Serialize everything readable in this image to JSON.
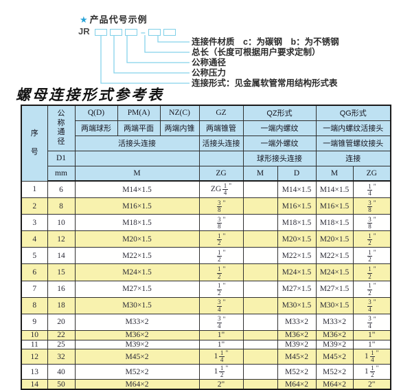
{
  "diagram": {
    "star": "★",
    "heading": "产品代号示例",
    "code_prefix": "JR",
    "dash": "—",
    "labels": [
      "连接件材质　c：为碳钢　b：为不锈钢",
      "总长（长度可根据用户要求定制）",
      "公称通径",
      "公称压力",
      "连接形式：见金属软管常用结构形式表"
    ]
  },
  "table": {
    "title": "螺母连接形式参考表",
    "header": {
      "xuhao": "序号",
      "tongjing": "公称通径",
      "d1": "D1",
      "mm": "mm",
      "col_q": "Q(D)",
      "col_pm": "PM(A)",
      "col_nz": "NZ(C)",
      "col_gz": "GZ",
      "col_qz": "QZ形式",
      "col_qg": "QG形式",
      "q_sub": "两端球形",
      "pm_sub": "两端平面",
      "nz_sub": "两端内锥",
      "gz_sub": "两端锥管",
      "qz_sub1": "一端内螺纹",
      "qg_sub1": "一端内螺纹活接头",
      "left_conn": "活接头连接",
      "gz_conn": "活接头连接",
      "qz_sub2": "一端外螺纹",
      "qg_sub2": "一端锥管螺纹接头",
      "qz_conn": "球形接头连接",
      "qg_conn": "连接",
      "m_left": "M",
      "zg_gz": "ZG",
      "m_qz": "M",
      "d_qz": "D",
      "m_qg": "M",
      "zg_qg": "ZG"
    },
    "rows": [
      {
        "no": "1",
        "dn": "6",
        "m": "M14×1.5",
        "gz": "ZG 1/4\"",
        "qz_m": "",
        "qz_d": "M14×1.5",
        "qg_m": "M14×1.5",
        "qg_zg": "1/4\""
      },
      {
        "no": "2",
        "dn": "8",
        "m": "M16×1.5",
        "gz": "3/8\"",
        "qz_m": "",
        "qz_d": "M16×1.5",
        "qg_m": "M16×1.5",
        "qg_zg": "3/8\""
      },
      {
        "no": "3",
        "dn": "10",
        "m": "M18×1.5",
        "gz": "3/8\"",
        "qz_m": "",
        "qz_d": "M18×1.5",
        "qg_m": "M18×1.5",
        "qg_zg": "3/8\""
      },
      {
        "no": "4",
        "dn": "12",
        "m": "M20×1.5",
        "gz": "1/2\"",
        "qz_m": "",
        "qz_d": "M20×1.5",
        "qg_m": "M20×1.5",
        "qg_zg": "1/2\""
      },
      {
        "no": "5",
        "dn": "14",
        "m": "M22×1.5",
        "gz": "1/2\"",
        "qz_m": "",
        "qz_d": "M22×1.5",
        "qg_m": "M22×1.5",
        "qg_zg": "1/2\""
      },
      {
        "no": "6",
        "dn": "15",
        "m": "M24×1.5",
        "gz": "1/2\"",
        "qz_m": "",
        "qz_d": "M24×1.5",
        "qg_m": "M24×1.5",
        "qg_zg": "1/2\""
      },
      {
        "no": "7",
        "dn": "16",
        "m": "M27×1.5",
        "gz": "1/2\"",
        "qz_m": "",
        "qz_d": "M27×1.5",
        "qg_m": "M27×1.5",
        "qg_zg": "1/2\""
      },
      {
        "no": "8",
        "dn": "18",
        "m": "M30×1.5",
        "gz": "3/4\"",
        "qz_m": "",
        "qz_d": "M30×1.5",
        "qg_m": "M30×1.5",
        "qg_zg": "3/4\""
      },
      {
        "no": "9",
        "dn": "20",
        "m": "M33×2",
        "gz": "3/4\"",
        "qz_m": "",
        "qz_d": "M33×2",
        "qg_m": "M33×2",
        "qg_zg": "3/4\""
      },
      {
        "no": "10",
        "dn": "22",
        "m": "M36×2",
        "gz": "1\"",
        "qz_m": "",
        "qz_d": "M36×2",
        "qg_m": "M36×2",
        "qg_zg": "1\""
      },
      {
        "no": "11",
        "dn": "25",
        "m": "M39×2",
        "gz": "1\"",
        "qz_m": "",
        "qz_d": "M39×2",
        "qg_m": "M39×2",
        "qg_zg": "1\""
      },
      {
        "no": "12",
        "dn": "32",
        "m": "M45×2",
        "gz": "1 1/4\"",
        "qz_m": "",
        "qz_d": "M45×2",
        "qg_m": "M45×2",
        "qg_zg": "1 1/4\""
      },
      {
        "no": "13",
        "dn": "40",
        "m": "M52×2",
        "gz": "1 1/2\"",
        "qz_m": "",
        "qz_d": "M52×2",
        "qg_m": "M52×2",
        "qg_zg": "1 1/2\""
      },
      {
        "no": "14",
        "dn": "50",
        "m": "M64×2",
        "gz": "2\"",
        "qz_m": "",
        "qz_d": "M64×2",
        "qg_m": "M64×2",
        "qg_zg": "2\""
      }
    ]
  },
  "colors": {
    "accent_cyan": "#7ecfe8",
    "star_blue": "#29a3d7",
    "header_bg": "#bee1f2",
    "row_yellow": "#f8f2ae",
    "border": "#2e2e2e"
  }
}
